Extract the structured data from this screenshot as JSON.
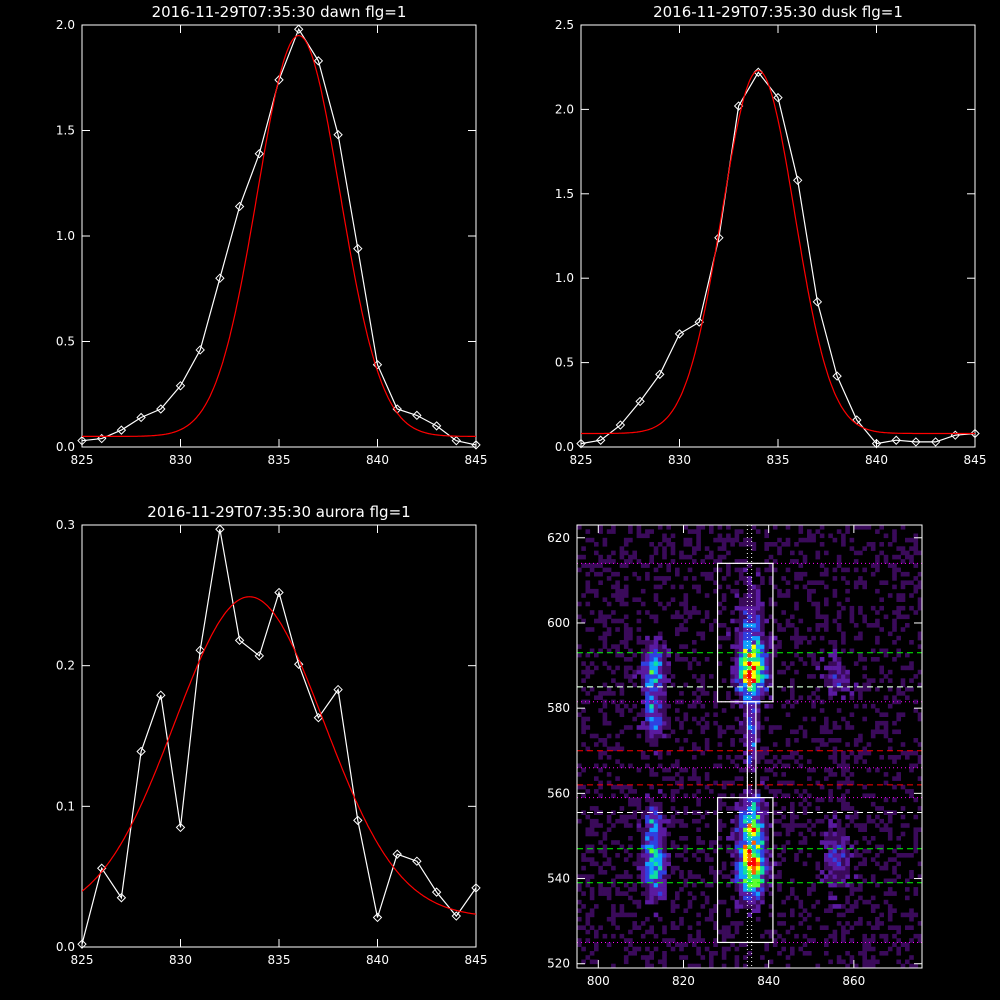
{
  "chart_data": [
    {
      "id": "dawn",
      "type": "line",
      "title": "2016-11-29T07:35:30 dawn flg=1",
      "xlim": [
        825,
        845
      ],
      "ylim": [
        0,
        2.0
      ],
      "xticks": [
        "825",
        "830",
        "835",
        "840",
        "845"
      ],
      "yticks": [
        "0.0",
        "0.5",
        "1.0",
        "1.5",
        "2.0"
      ],
      "series": [
        {
          "color": "#ffffff",
          "marker": "diamond",
          "x": [
            825,
            826,
            827,
            828,
            829,
            830,
            831,
            832,
            833,
            834,
            835,
            836,
            837,
            838,
            839,
            840,
            841,
            842,
            843,
            844,
            845
          ],
          "y": [
            0.03,
            0.04,
            0.08,
            0.14,
            0.18,
            0.29,
            0.46,
            0.8,
            1.14,
            1.39,
            1.74,
            1.98,
            1.83,
            1.48,
            0.94,
            0.39,
            0.18,
            0.15,
            0.1,
            0.03,
            0.01
          ]
        },
        {
          "color": "#ff0000",
          "marker": "none",
          "fit": {
            "base": 0.05,
            "amp": 1.9,
            "mu": 836.0,
            "sigma": 2.1
          }
        }
      ]
    },
    {
      "id": "dusk",
      "type": "line",
      "title": "2016-11-29T07:35:30 dusk flg=1",
      "xlim": [
        825,
        845
      ],
      "ylim": [
        0,
        2.5
      ],
      "xticks": [
        "825",
        "830",
        "835",
        "840",
        "845"
      ],
      "yticks": [
        "0.0",
        "0.5",
        "1.0",
        "1.5",
        "2.0",
        "2.5"
      ],
      "series": [
        {
          "color": "#ffffff",
          "marker": "diamond",
          "x": [
            825,
            826,
            827,
            828,
            829,
            830,
            831,
            832,
            833,
            834,
            835,
            836,
            837,
            838,
            839,
            840,
            841,
            842,
            843,
            844,
            845
          ],
          "y": [
            0.02,
            0.04,
            0.13,
            0.27,
            0.43,
            0.67,
            0.74,
            1.24,
            2.02,
            2.22,
            2.07,
            1.58,
            0.86,
            0.42,
            0.16,
            0.02,
            0.04,
            0.03,
            0.03,
            0.07,
            0.08
          ]
        },
        {
          "color": "#ff0000",
          "marker": "none",
          "fit": {
            "base": 0.08,
            "amp": 2.15,
            "mu": 834.0,
            "sigma": 1.85
          }
        }
      ]
    },
    {
      "id": "aurora",
      "type": "line",
      "title": "2016-11-29T07:35:30 aurora flg=1",
      "xlim": [
        825,
        845
      ],
      "ylim": [
        0,
        0.3
      ],
      "xticks": [
        "825",
        "830",
        "835",
        "840",
        "845"
      ],
      "yticks": [
        "0.0",
        "0.1",
        "0.2",
        "0.3"
      ],
      "series": [
        {
          "color": "#ffffff",
          "marker": "diamond",
          "x": [
            825,
            826,
            827,
            828,
            829,
            830,
            831,
            832,
            833,
            834,
            835,
            836,
            837,
            838,
            839,
            840,
            841,
            842,
            843,
            844,
            845
          ],
          "y": [
            0.002,
            0.056,
            0.035,
            0.139,
            0.179,
            0.085,
            0.211,
            0.297,
            0.218,
            0.207,
            0.252,
            0.201,
            0.163,
            0.183,
            0.09,
            0.021,
            0.066,
            0.061,
            0.039,
            0.022,
            0.042
          ]
        },
        {
          "color": "#ff0000",
          "marker": "none",
          "fit": {
            "base": 0.021,
            "amp": 0.228,
            "mu": 833.5,
            "sigma": 3.8
          }
        }
      ]
    },
    {
      "id": "image",
      "type": "heatmap",
      "xlim": [
        795,
        876
      ],
      "ylim": [
        519,
        623
      ],
      "xticks": [
        {
          "v": 800,
          "label": "800"
        },
        {
          "v": 820,
          "label": "820"
        },
        {
          "v": 840,
          "label": "840"
        },
        {
          "v": 860,
          "label": "860"
        }
      ],
      "yticks": [
        {
          "v": 520,
          "label": "520"
        },
        {
          "v": 540,
          "label": "540"
        },
        {
          "v": 560,
          "label": "560"
        },
        {
          "v": 580,
          "label": "580"
        },
        {
          "v": 600,
          "label": "600"
        },
        {
          "v": 620,
          "label": "620"
        }
      ],
      "colormap": [
        "#000000",
        "#3a0a5a",
        "#5a1aa0",
        "#3040e0",
        "#10a0ff",
        "#10e0a0",
        "#60ff30",
        "#ffff00",
        "#ff6000",
        "#ff0000"
      ],
      "blobs": [
        {
          "x": 836,
          "y": 589,
          "sx": 2.2,
          "sy": 4.0,
          "amp": 0.95
        },
        {
          "x": 836,
          "y": 543,
          "sx": 2.0,
          "sy": 4.5,
          "amp": 1.0
        },
        {
          "x": 836,
          "y": 553,
          "sx": 2.0,
          "sy": 4.0,
          "amp": 0.65
        },
        {
          "x": 836,
          "y": 575,
          "sx": 1.0,
          "sy": 6.0,
          "amp": 0.35
        },
        {
          "x": 836,
          "y": 600,
          "sx": 2.0,
          "sy": 6.0,
          "amp": 0.3
        },
        {
          "x": 813,
          "y": 589,
          "sx": 1.8,
          "sy": 3.5,
          "amp": 0.55
        },
        {
          "x": 813,
          "y": 578,
          "sx": 1.5,
          "sy": 4.0,
          "amp": 0.4
        },
        {
          "x": 813,
          "y": 543,
          "sx": 1.8,
          "sy": 4.5,
          "amp": 0.55
        },
        {
          "x": 813,
          "y": 553,
          "sx": 1.5,
          "sy": 3.5,
          "amp": 0.35
        },
        {
          "x": 856,
          "y": 588,
          "sx": 2.0,
          "sy": 3.0,
          "amp": 0.22
        },
        {
          "x": 856,
          "y": 545,
          "sx": 2.0,
          "sy": 5.0,
          "amp": 0.25
        }
      ],
      "hlines": [
        {
          "y": 614,
          "color": "#ff00ff",
          "style": "dotted"
        },
        {
          "y": 593,
          "color": "#00ff00",
          "style": "dashed"
        },
        {
          "y": 585,
          "color": "#00ff00",
          "style": "dashed"
        },
        {
          "y": 585,
          "color": "#ffffff",
          "style": "dashed"
        },
        {
          "y": 581.5,
          "color": "#ff00ff",
          "style": "dotted"
        },
        {
          "y": 570,
          "color": "#ff0000",
          "style": "dashed"
        },
        {
          "y": 566,
          "color": "#ff00ff",
          "style": "dotted"
        },
        {
          "y": 562,
          "color": "#ff0000",
          "style": "dashed"
        },
        {
          "y": 559,
          "color": "#ff00ff",
          "style": "dotted"
        },
        {
          "y": 555.5,
          "color": "#ffffff",
          "style": "dashed"
        },
        {
          "y": 547,
          "color": "#00ff00",
          "style": "dashed"
        },
        {
          "y": 539,
          "color": "#00ff00",
          "style": "dashed"
        },
        {
          "y": 525,
          "color": "#ff00ff",
          "style": "dotted"
        }
      ],
      "vlines": [
        {
          "x": 835,
          "color": "#ffffff",
          "style": "dotted"
        },
        {
          "x": 836,
          "color": "#ffffff",
          "style": "dotted"
        }
      ],
      "boxes": [
        {
          "x0": 828,
          "x1": 841,
          "y0": 581.5,
          "y1": 614
        },
        {
          "x0": 828,
          "x1": 841,
          "y0": 525,
          "y1": 559
        },
        {
          "x0": 835,
          "x1": 837,
          "y0": 559,
          "y1": 581.5
        }
      ]
    }
  ]
}
